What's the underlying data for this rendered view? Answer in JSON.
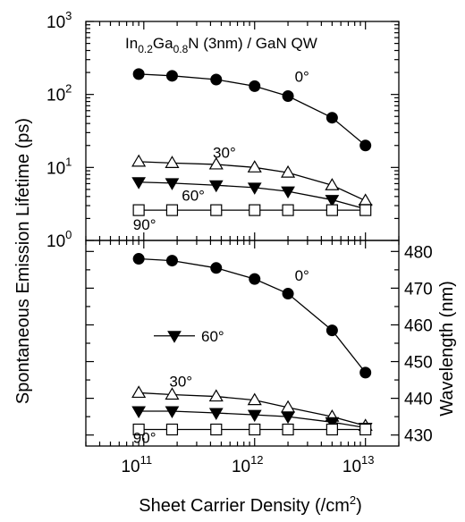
{
  "chart_data": [
    {
      "type": "line",
      "panel": "top",
      "title": "",
      "annotation_parts": [
        "In",
        "0.2",
        "Ga",
        "0.8",
        "N (3nm) / GaN QW"
      ],
      "xlabel": "",
      "ylabel": "Spontaneous Emission Lifetime (ps)",
      "xscale": "log",
      "yscale": "log",
      "xlim": [
        30000000000.0,
        20000000000000.0
      ],
      "ylim": [
        1,
        1000
      ],
      "yticks": [
        {
          "value": 1,
          "base": "10",
          "exp": "0"
        },
        {
          "value": 10,
          "base": "10",
          "exp": "1"
        },
        {
          "value": 100,
          "base": "10",
          "exp": "2"
        },
        {
          "value": 1000,
          "base": "10",
          "exp": "3"
        }
      ],
      "grid": false,
      "x": [
        90000000000.0,
        180000000000.0,
        450000000000.0,
        1000000000000.0,
        2000000000000.0,
        5000000000000.0,
        10000000000000.0
      ],
      "series": [
        {
          "name": "0°",
          "marker": "filled-circle",
          "values": [
            190,
            180,
            160,
            130,
            95,
            48,
            20
          ]
        },
        {
          "name": "30°",
          "marker": "open-triangle",
          "values": [
            12,
            11.5,
            11,
            10,
            8.5,
            5.7,
            3.5
          ]
        },
        {
          "name": "60°",
          "marker": "filled-triangle-down",
          "values": [
            6.3,
            6.1,
            5.7,
            5.3,
            4.7,
            3.6,
            2.7
          ]
        },
        {
          "name": "90°",
          "marker": "open-square",
          "values": [
            2.6,
            2.6,
            2.6,
            2.6,
            2.6,
            2.6,
            2.6
          ]
        }
      ]
    },
    {
      "type": "line",
      "panel": "bottom",
      "title": "",
      "xlabel_parts": [
        "Sheet Carrier Density (/cm",
        "2",
        ")"
      ],
      "ylabel": "Wavelength (nm)",
      "xscale": "log",
      "yscale": "linear",
      "xlim": [
        30000000000.0,
        20000000000000.0
      ],
      "ylim": [
        427,
        483
      ],
      "xticks": [
        {
          "value": 100000000000.0,
          "base": "10",
          "exp": "11"
        },
        {
          "value": 1000000000000.0,
          "base": "10",
          "exp": "12"
        },
        {
          "value": 10000000000000.0,
          "base": "10",
          "exp": "13"
        }
      ],
      "yticks": [
        "430",
        "440",
        "450",
        "460",
        "470",
        "480"
      ],
      "grid": false,
      "x": [
        90000000000.0,
        180000000000.0,
        450000000000.0,
        1000000000000.0,
        2000000000000.0,
        5000000000000.0,
        10000000000000.0
      ],
      "series": [
        {
          "name": "0°",
          "marker": "filled-circle",
          "values": [
            478,
            477.5,
            475.5,
            472.5,
            468.5,
            458.5,
            447
          ]
        },
        {
          "name": "30°",
          "marker": "open-triangle",
          "values": [
            441.5,
            441,
            440.5,
            439.5,
            437.5,
            435,
            432.5
          ]
        },
        {
          "name": "60°",
          "marker": "filled-triangle-down",
          "values": [
            436.5,
            436.5,
            436,
            435.5,
            435,
            433.5,
            432
          ]
        },
        {
          "name": "90°",
          "marker": "open-square",
          "values": [
            431.5,
            431.5,
            431.5,
            431.5,
            431.5,
            431.5,
            431.5
          ]
        }
      ],
      "legend_label": "60°"
    }
  ]
}
